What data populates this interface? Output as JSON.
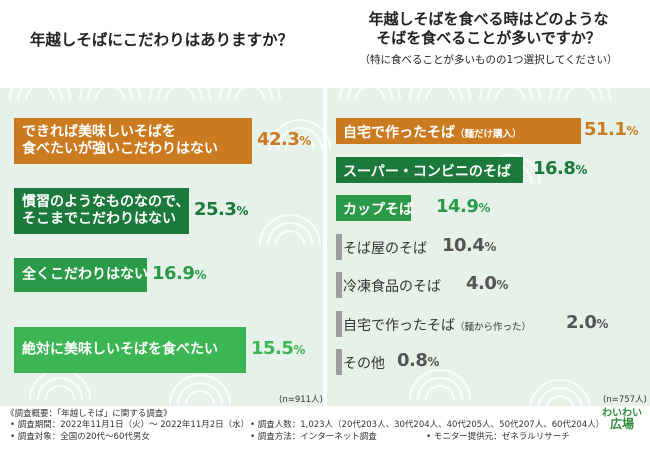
{
  "left": {
    "question": "年越しそばにこだわりはありますか？",
    "n_label": "(n=911人)"
  },
  "right": {
    "question_line1": "年越しそばを食べる時はどのような",
    "question_line2": "そばを食べることが多いですか？",
    "question_sub": "（特に食べることが多いものの1つ選択してください）",
    "n_label": "(n=757人)"
  },
  "notes": {
    "title": "《調査概要：「年越しそば」に関する調査》",
    "period": "• 調査期間：2022年11月1日（火）～ 2022年11月2日（水）",
    "target": "• 調査対象：全国の20代〜60代男女",
    "respondents": "• 調査人数：1,023人（20代203人、30代204人、40代205人、50代207人、60代204人）",
    "method": "• 調査方法：インターネット調査",
    "provider": "• モニター提供元：ゼネラルリサーチ"
  },
  "logo": {
    "line1": "わいわい",
    "line2": "広場"
  },
  "colors": {
    "orange": "#cc7a1f",
    "dark_green": "#1b7a3b",
    "mid_green": "#2a9a48",
    "light_green": "#3cb553",
    "gray": "#9e9e9e",
    "panel_bg": "#e6f2e9"
  },
  "chart_data": [
    {
      "type": "bar",
      "title": "年越しそばにこだわりはありますか？",
      "n": "(n=911人)",
      "categories": [
        "できれば美味しいそばを食べたいが強いこだわりはない",
        "慣習のようなものなので、そこまでこだわりはない",
        "全くこだわりはない",
        "絶対に美味しいそばを食べたい"
      ],
      "label_lines": [
        [
          "できれば美味しいそばを",
          "食べたいが強いこだわりはない"
        ],
        [
          "慣習のようなものなので、",
          "そこまでこだわりはない"
        ],
        [
          "全くこだわりはない"
        ],
        [
          "絶対に美味しいそばを食べたい"
        ]
      ],
      "values": [
        42.3,
        25.3,
        16.9,
        15.5
      ],
      "unit": "%"
    },
    {
      "type": "bar",
      "title": "年越しそばを食べる時はどのようなそばを食べることが多いですか？",
      "n": "(n=757人)",
      "categories": [
        "自宅で作ったそば（麺だけ購入）",
        "スーパー・コンビニのそば",
        "カップそば",
        "そば屋のそば",
        "冷凍食品のそば",
        "自宅で作ったそば（麺から作った）",
        "その他"
      ],
      "label_main": [
        "自宅で作ったそば",
        "スーパー・コンビニのそば",
        "カップそば",
        "そば屋のそば",
        "冷凍食品のそば",
        "自宅で作ったそば",
        "その他"
      ],
      "label_small": [
        "（麺だけ購入）",
        "",
        "",
        "",
        "",
        "（麺から作った）",
        ""
      ],
      "values": [
        51.1,
        16.8,
        14.9,
        10.4,
        4.0,
        2.0,
        0.8
      ],
      "unit": "%"
    }
  ]
}
